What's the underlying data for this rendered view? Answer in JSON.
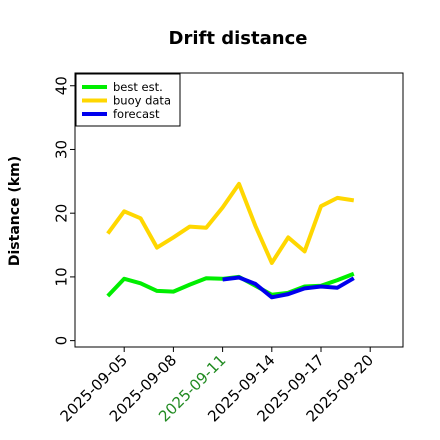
{
  "chart_data": {
    "type": "line",
    "title": "Drift distance",
    "xlabel": "",
    "ylabel": "Distance (km)",
    "x_ticks": [
      "2025-09-05",
      "2025-09-08",
      "2025-09-11",
      "2025-09-14",
      "2025-09-17",
      "2025-09-20"
    ],
    "x_tick_colors": [
      "#000000",
      "#000000",
      "#228B22",
      "#000000",
      "#000000",
      "#000000"
    ],
    "x_range": [
      "2025-09-02",
      "2025-09-22"
    ],
    "y_ticks": [
      0,
      10,
      20,
      30,
      40
    ],
    "ylim": [
      -1,
      42
    ],
    "grid": false,
    "legend_position": "top-left",
    "series": [
      {
        "name": "best est.",
        "color": "#00ee00",
        "x": [
          "2025-09-04",
          "2025-09-05",
          "2025-09-06",
          "2025-09-07",
          "2025-09-08",
          "2025-09-09",
          "2025-09-10",
          "2025-09-11",
          "2025-09-12",
          "2025-09-13",
          "2025-09-14",
          "2025-09-15",
          "2025-09-16",
          "2025-09-17",
          "2025-09-18",
          "2025-09-19"
        ],
        "values": [
          7.0,
          9.7,
          9.0,
          7.8,
          7.7,
          8.8,
          9.8,
          9.7,
          10.0,
          8.6,
          7.2,
          7.5,
          8.5,
          8.6,
          9.5,
          10.5
        ]
      },
      {
        "name": "buoy data",
        "color": "#ffd700",
        "x": [
          "2025-09-04",
          "2025-09-05",
          "2025-09-06",
          "2025-09-07",
          "2025-09-08",
          "2025-09-09",
          "2025-09-10",
          "2025-09-11",
          "2025-09-12",
          "2025-09-13",
          "2025-09-14",
          "2025-09-15",
          "2025-09-16",
          "2025-09-17",
          "2025-09-18",
          "2025-09-19"
        ],
        "values": [
          16.8,
          20.3,
          19.2,
          14.6,
          16.2,
          17.9,
          17.7,
          20.9,
          24.6,
          18.0,
          12.2,
          16.2,
          14.0,
          21.1,
          22.4,
          22.0
        ]
      },
      {
        "name": "forecast",
        "color": "#0000ee",
        "x": [
          "2025-09-11",
          "2025-09-12",
          "2025-09-13",
          "2025-09-14",
          "2025-09-15",
          "2025-09-16",
          "2025-09-17",
          "2025-09-18",
          "2025-09-19"
        ],
        "values": [
          9.6,
          9.9,
          8.9,
          6.8,
          7.3,
          8.2,
          8.5,
          8.3,
          9.8
        ]
      }
    ]
  }
}
